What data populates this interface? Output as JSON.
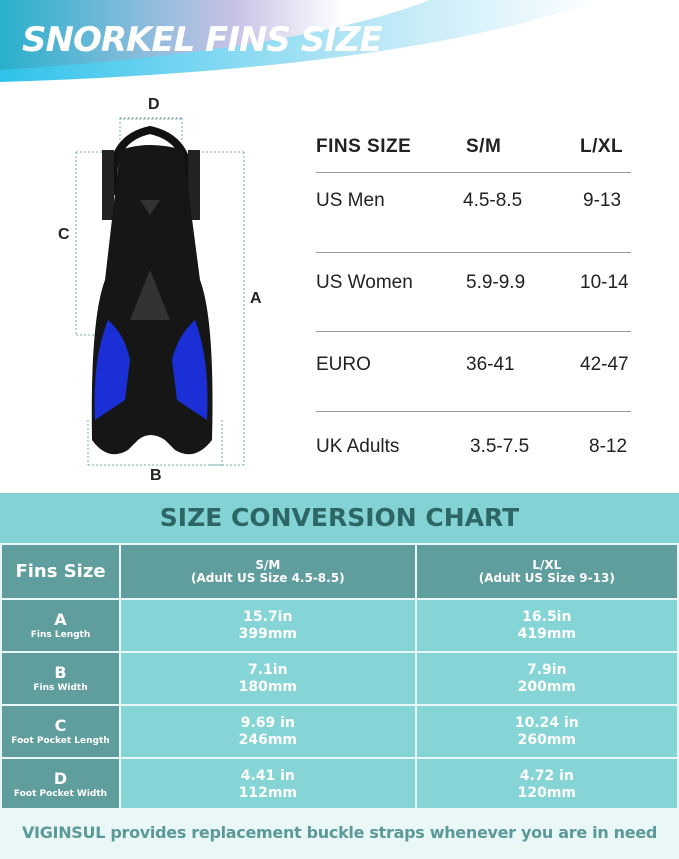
{
  "header": {
    "title": "SNORKEL FINS SIZE"
  },
  "diagram": {
    "labels": {
      "a": "A",
      "b": "B",
      "c": "C",
      "d": "D"
    }
  },
  "size_table": {
    "headers": [
      "FINS SIZE",
      "S/M",
      "L/XL"
    ],
    "rows": [
      [
        "US Men",
        "4.5-8.5",
        "9-13"
      ],
      [
        "US Women",
        "5.9-9.9",
        "10-14"
      ],
      [
        "EURO",
        "36-41",
        "42-47"
      ],
      [
        "UK Adults",
        "3.5-7.5",
        "8-12"
      ]
    ]
  },
  "conversion": {
    "title": "SIZE CONVERSION CHART",
    "header": {
      "first": "Fins Size",
      "sm": "S/M",
      "sm_sub": "(Adult US Size 4.5-8.5)",
      "lxl": "L/XL",
      "lxl_sub": "(Adult US Size 9-13)"
    },
    "rows": [
      {
        "letter": "A",
        "name": "Fins Length",
        "sm_in": "15.7in",
        "sm_mm": "399mm",
        "lxl_in": "16.5in",
        "lxl_mm": "419mm"
      },
      {
        "letter": "B",
        "name": "Fins Width",
        "sm_in": "7.1in",
        "sm_mm": "180mm",
        "lxl_in": "7.9in",
        "lxl_mm": "200mm"
      },
      {
        "letter": "C",
        "name": "Foot Pocket Length",
        "sm_in": "9.69 in",
        "sm_mm": "246mm",
        "lxl_in": "10.24 in",
        "lxl_mm": "260mm"
      },
      {
        "letter": "D",
        "name": "Foot Pocket Width",
        "sm_in": "4.41 in",
        "sm_mm": "112mm",
        "lxl_in": "4.72 in",
        "lxl_mm": "120mm"
      }
    ]
  },
  "footer": "VIGINSUL provides replacement buckle straps whenever you are in need",
  "colors": {
    "teal": "#84d3d4",
    "dark_teal": "#5f9e9c",
    "fin_blue": "#1a2fd6"
  }
}
